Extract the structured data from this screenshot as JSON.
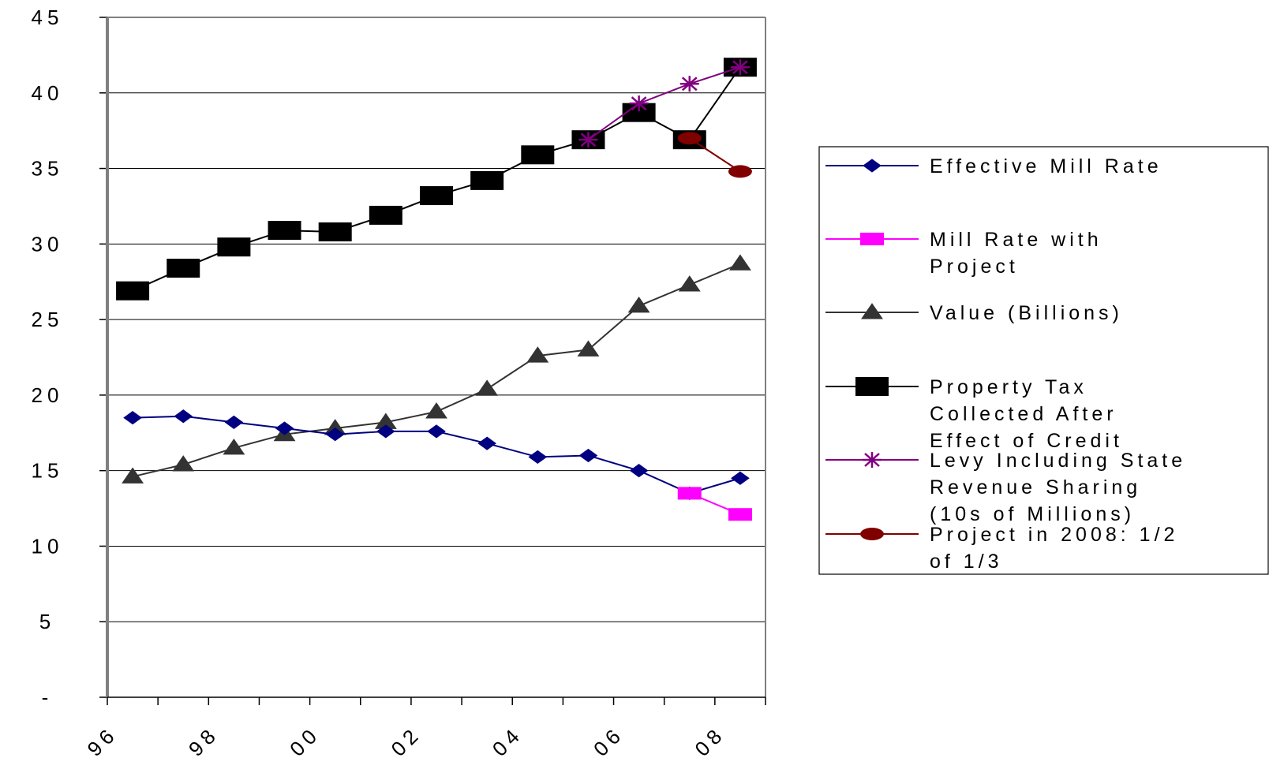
{
  "chart_data": {
    "type": "line",
    "y_ticks": [
      "-",
      "5",
      "10",
      "15",
      "20",
      "25",
      "30",
      "35",
      "40",
      "45"
    ],
    "x_tick_labels": [
      "96",
      "98",
      "00",
      "02",
      "04",
      "06",
      "08"
    ],
    "ylim": [
      0,
      45
    ],
    "x_range": [
      1996,
      2009
    ],
    "grid": "horizontal",
    "legend_position": "right",
    "series": [
      {
        "name": "Effective Mill Rate",
        "color": "#000080",
        "marker": "diamond",
        "points": [
          [
            1996.5,
            18.5
          ],
          [
            1997.5,
            18.6
          ],
          [
            1998.5,
            18.2
          ],
          [
            1999.5,
            17.8
          ],
          [
            2000.5,
            17.4
          ],
          [
            2001.5,
            17.6
          ],
          [
            2002.5,
            17.6
          ],
          [
            2003.5,
            16.8
          ],
          [
            2004.5,
            15.9
          ],
          [
            2005.5,
            16.0
          ],
          [
            2006.5,
            15.0
          ],
          [
            2007.5,
            13.5
          ],
          [
            2008.5,
            14.5
          ]
        ]
      },
      {
        "name": "Mill Rate with Project",
        "color": "#ff00ff",
        "marker": "square",
        "points": [
          [
            2007.5,
            13.5
          ],
          [
            2008.5,
            12.1
          ]
        ]
      },
      {
        "name": "Value (Billions)",
        "color": "#333333",
        "marker": "triangle",
        "points": [
          [
            1996.5,
            14.6
          ],
          [
            1997.5,
            15.4
          ],
          [
            1998.5,
            16.5
          ],
          [
            1999.5,
            17.4
          ],
          [
            2000.5,
            17.8
          ],
          [
            2001.5,
            18.2
          ],
          [
            2002.5,
            18.9
          ],
          [
            2003.5,
            20.4
          ],
          [
            2004.5,
            22.6
          ],
          [
            2005.5,
            23.0
          ],
          [
            2006.5,
            25.9
          ],
          [
            2007.5,
            27.3
          ],
          [
            2008.5,
            28.7
          ]
        ]
      },
      {
        "name": "Property Tax Collected After Effect of Credit",
        "color": "#000000",
        "marker": "big-square",
        "points": [
          [
            1996.5,
            26.9
          ],
          [
            1997.5,
            28.4
          ],
          [
            1998.5,
            29.8
          ],
          [
            1999.5,
            30.9
          ],
          [
            2000.5,
            30.8
          ],
          [
            2001.5,
            31.9
          ],
          [
            2002.5,
            33.2
          ],
          [
            2003.5,
            34.2
          ],
          [
            2004.5,
            35.9
          ],
          [
            2005.5,
            36.9
          ],
          [
            2006.5,
            38.7
          ],
          [
            2007.5,
            36.9
          ],
          [
            2008.5,
            41.7
          ]
        ]
      },
      {
        "name": "Levy Including State Revenue Sharing (10s of Millions)",
        "color": "#800080",
        "marker": "star",
        "points": [
          [
            2005.5,
            36.9
          ],
          [
            2006.5,
            39.3
          ],
          [
            2007.5,
            40.6
          ],
          [
            2008.5,
            41.7
          ]
        ]
      },
      {
        "name": "Project in 2008: 1/2 of 1/3",
        "color": "#800000",
        "marker": "circle",
        "points": [
          [
            2007.5,
            37.0
          ],
          [
            2008.5,
            34.8
          ]
        ]
      }
    ]
  },
  "legend": [
    {
      "lines": [
        "Effective Mill Rate"
      ],
      "color": "#000080",
      "marker": "diamond"
    },
    {
      "lines": [
        "Mill Rate with",
        "Project"
      ],
      "color": "#ff00ff",
      "marker": "square"
    },
    {
      "lines": [
        "Value (Billions)"
      ],
      "color": "#333333",
      "marker": "triangle"
    },
    {
      "lines": [
        "Property Tax",
        "Collected After",
        "Effect of Credit"
      ],
      "color": "#000000",
      "marker": "big-square"
    },
    {
      "lines": [
        "Levy Including State",
        "Revenue Sharing",
        "(10s of Millions)"
      ],
      "color": "#800080",
      "marker": "star"
    },
    {
      "lines": [
        "Project in 2008: 1/2",
        "of 1/3"
      ],
      "color": "#800000",
      "marker": "circle"
    }
  ]
}
